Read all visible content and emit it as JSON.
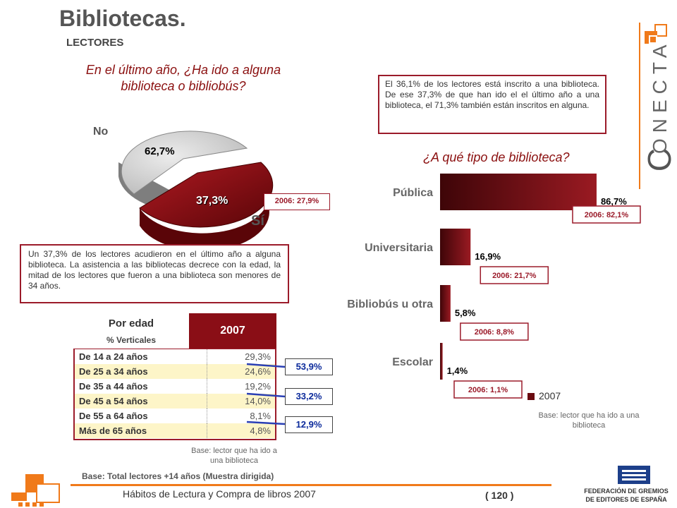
{
  "header": {
    "title": "Bibliotecas.",
    "subtitle": "LECTORES"
  },
  "pie": {
    "question": "En el último año, ¿Ha ido a alguna biblioteca o bibliobús?",
    "label_no": "No",
    "label_si": "Sí",
    "value_no": "62,7%",
    "value_si": "37,3%",
    "note_2006": "2006: 27,9%"
  },
  "note_left": "Un 37,3% de los lectores acudieron en el último año a alguna biblioteca. La asistencia a las bibliotecas decrece con la edad, la mitad de los lectores que fueron a una biblioteca son menores de 34 años.",
  "note_right": "El 36,1% de los lectores está inscrito a una biblioteca. De ese 37,3% de que han ido el el último año a una biblioteca, el 71,3% también están inscritos en alguna.",
  "age_table": {
    "title": "Por edad",
    "subtitle": "% Verticales",
    "year": "2007",
    "rows": [
      {
        "label": "De 14 a 24 años",
        "value": "29,3%"
      },
      {
        "label": "De 25 a 34 años",
        "value": "24,6%"
      },
      {
        "label": "De 35 a 44 años",
        "value": "19,2%"
      },
      {
        "label": "De 45 a 54 años",
        "value": "14,0%"
      },
      {
        "label": "De 55 a 64 años",
        "value": "8,1%"
      },
      {
        "label": "Más de 65 años",
        "value": "4,8%"
      }
    ],
    "groups": [
      "53,9%",
      "33,2%",
      "12,9%"
    ],
    "base": "Base: lector que ha ido a una biblioteca"
  },
  "bar_question": "¿A qué tipo de biblioteca?",
  "bar_base": "Base: lector que ha ido a una biblioteca",
  "footer": {
    "base_total": "Base: Total lectores +14 años (Muestra dirigida)",
    "report": "Hábitos de Lectura y Compra de libros 2007",
    "page": "( 120 )",
    "brand": "ONECTA",
    "brand_initial": "C",
    "org_line1": "FEDERACIÓN DE GREMIOS",
    "org_line2": "DE EDITORES DE ESPAÑA"
  },
  "colors": {
    "accent": "#9b1b2a",
    "bar_dark": "#5a0a10",
    "orange": "#f07a1a"
  },
  "chart_data": [
    {
      "type": "pie",
      "categories": [
        "No",
        "Sí"
      ],
      "values": [
        62.7,
        37.3
      ],
      "labels": [
        "62,7%",
        "37,3%"
      ]
    },
    {
      "type": "bar",
      "orientation": "horizontal",
      "categories": [
        "Pública",
        "Universitaria",
        "Bibliobús u otra",
        "Escolar"
      ],
      "series": [
        {
          "name": "2007",
          "values": [
            86.7,
            16.9,
            5.8,
            1.4
          ]
        }
      ],
      "value_labels": [
        "86,7%",
        "16,9%",
        "5,8%",
        "1,4%"
      ],
      "notes_2006": [
        "2006: 82,1%",
        "2006: 21,7%",
        "2006: 8,8%",
        "2006: 1,1%"
      ],
      "xlim": [
        0,
        100
      ],
      "legend": "bottom"
    }
  ]
}
